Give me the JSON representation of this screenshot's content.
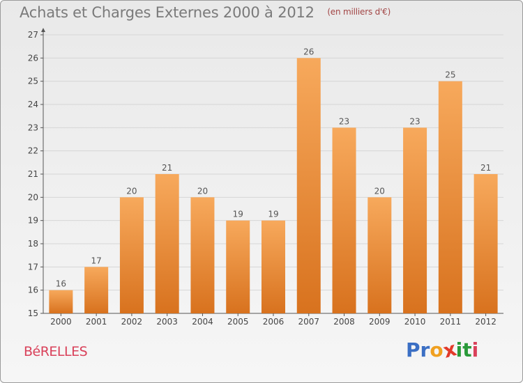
{
  "header": {
    "title": "Achats et Charges Externes 2000 à 2012",
    "subtitle": "(en milliers d'€)"
  },
  "town": "BéRELLES",
  "logo": {
    "letters": [
      "P",
      "r",
      "o",
      "x",
      "i",
      "t",
      "i"
    ],
    "colors": [
      "#3b6fc4",
      "#3b6fc4",
      "#f0a020",
      "#e23a2a",
      "#2a9a3a",
      "#2a9a3a",
      "#d9415a"
    ]
  },
  "colors": {
    "bar_top": "#f7a95c",
    "bar_bottom": "#d8721e",
    "value_label": "#555555",
    "axis": "#555555",
    "grid": "#d6d6d6"
  },
  "chart_data": {
    "type": "bar",
    "title": "Achats et Charges Externes 2000 à 2012",
    "subtitle": "(en milliers d'€)",
    "categories": [
      "2000",
      "2001",
      "2002",
      "2003",
      "2004",
      "2005",
      "2006",
      "2007",
      "2008",
      "2009",
      "2010",
      "2011",
      "2012"
    ],
    "values": [
      16,
      17,
      20,
      21,
      20,
      19,
      19,
      26,
      23,
      20,
      23,
      25,
      21
    ],
    "ylim": [
      15,
      27
    ],
    "yticks": [
      15,
      16,
      17,
      18,
      19,
      20,
      21,
      22,
      23,
      24,
      25,
      26,
      27
    ],
    "grid": true,
    "xlabel": "",
    "ylabel": ""
  }
}
